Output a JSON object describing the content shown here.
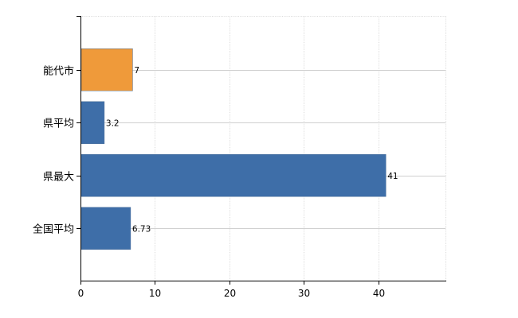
{
  "chart_data": {
    "type": "bar",
    "orientation": "horizontal",
    "categories": [
      "能代市",
      "県平均",
      "県最大",
      "全国平均"
    ],
    "values": [
      7,
      3.2,
      41,
      6.73
    ],
    "value_labels": [
      "7",
      "3.2",
      "41",
      "6.73"
    ],
    "highlight_index": 0,
    "colors": {
      "bar": "#3e6ea8",
      "highlight": "#ef9a3a"
    },
    "xlim": [
      0,
      49
    ],
    "xticks": [
      0,
      10,
      20,
      30,
      40
    ],
    "grid": true,
    "title": "",
    "xlabel": "",
    "ylabel": ""
  }
}
